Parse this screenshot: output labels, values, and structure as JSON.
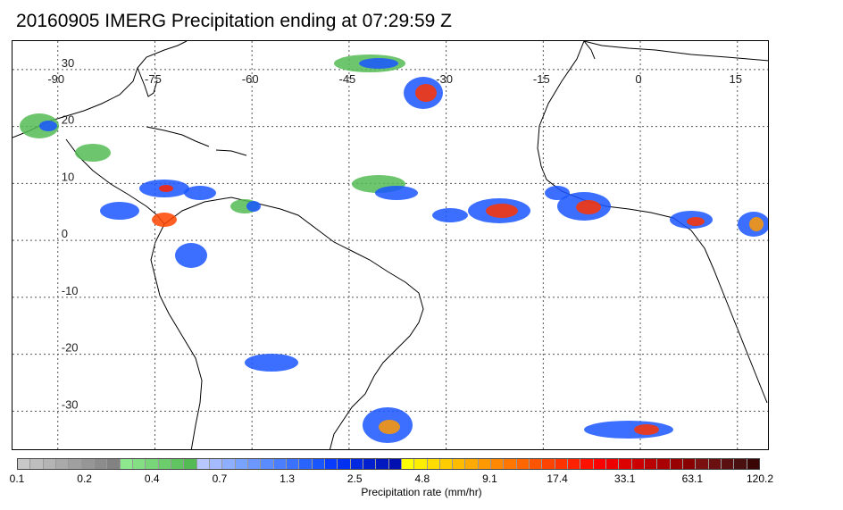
{
  "title": "20160905 IMERG Precipitation ending at 07:29:59 Z",
  "map": {
    "lon_labels": [
      "-90",
      "-75",
      "-60",
      "-45",
      "-30",
      "-15",
      "0",
      "15"
    ],
    "lon_values": [
      -90,
      -75,
      -60,
      -45,
      -30,
      -15,
      0,
      15
    ],
    "lat_labels": [
      "30",
      "20",
      "10",
      "0",
      "-10",
      "-20",
      "-30"
    ],
    "lat_values": [
      30,
      20,
      10,
      0,
      -10,
      -20,
      -30
    ],
    "lon_range": [
      -97,
      20
    ],
    "lat_range": [
      35,
      -37
    ],
    "grid": "dotted"
  },
  "colorbar": {
    "label": "Precipitation rate (mm/hr)",
    "tick_labels": [
      "0.1",
      "0.2",
      "0.4",
      "0.7",
      "1.3",
      "2.5",
      "4.8",
      "9.1",
      "17.4",
      "33.1",
      "63.1",
      "120.2"
    ],
    "colors": [
      "#c8c8c8",
      "#bebebe",
      "#b4b4b4",
      "#aaaaaa",
      "#a0a0a0",
      "#969696",
      "#8c8c8c",
      "#828282",
      "#8ee88e",
      "#84df84",
      "#78d678",
      "#6ccd6c",
      "#60c460",
      "#54bb54",
      "#b8c8ff",
      "#a4bbff",
      "#8eafff",
      "#78a3ff",
      "#6c97ff",
      "#5a8bff",
      "#4a7eff",
      "#3a72ff",
      "#2a64ff",
      "#1a56ff",
      "#0a3cff",
      "#0030f0",
      "#0028e0",
      "#0020d0",
      "#0018c0",
      "#0010b0",
      "#ffff00",
      "#ffee00",
      "#ffdd00",
      "#ffcc00",
      "#ffbb00",
      "#ffaa00",
      "#ff9900",
      "#ff8800",
      "#ff7700",
      "#ff6600",
      "#ff5500",
      "#ff4400",
      "#ff3300",
      "#ff2200",
      "#ff1100",
      "#ff0000",
      "#ee0000",
      "#dd0000",
      "#cc0000",
      "#bb0000",
      "#aa0000",
      "#990000",
      "#880000",
      "#7a1010",
      "#6a1010",
      "#5a1010",
      "#4a1010",
      "#3a0505"
    ]
  }
}
